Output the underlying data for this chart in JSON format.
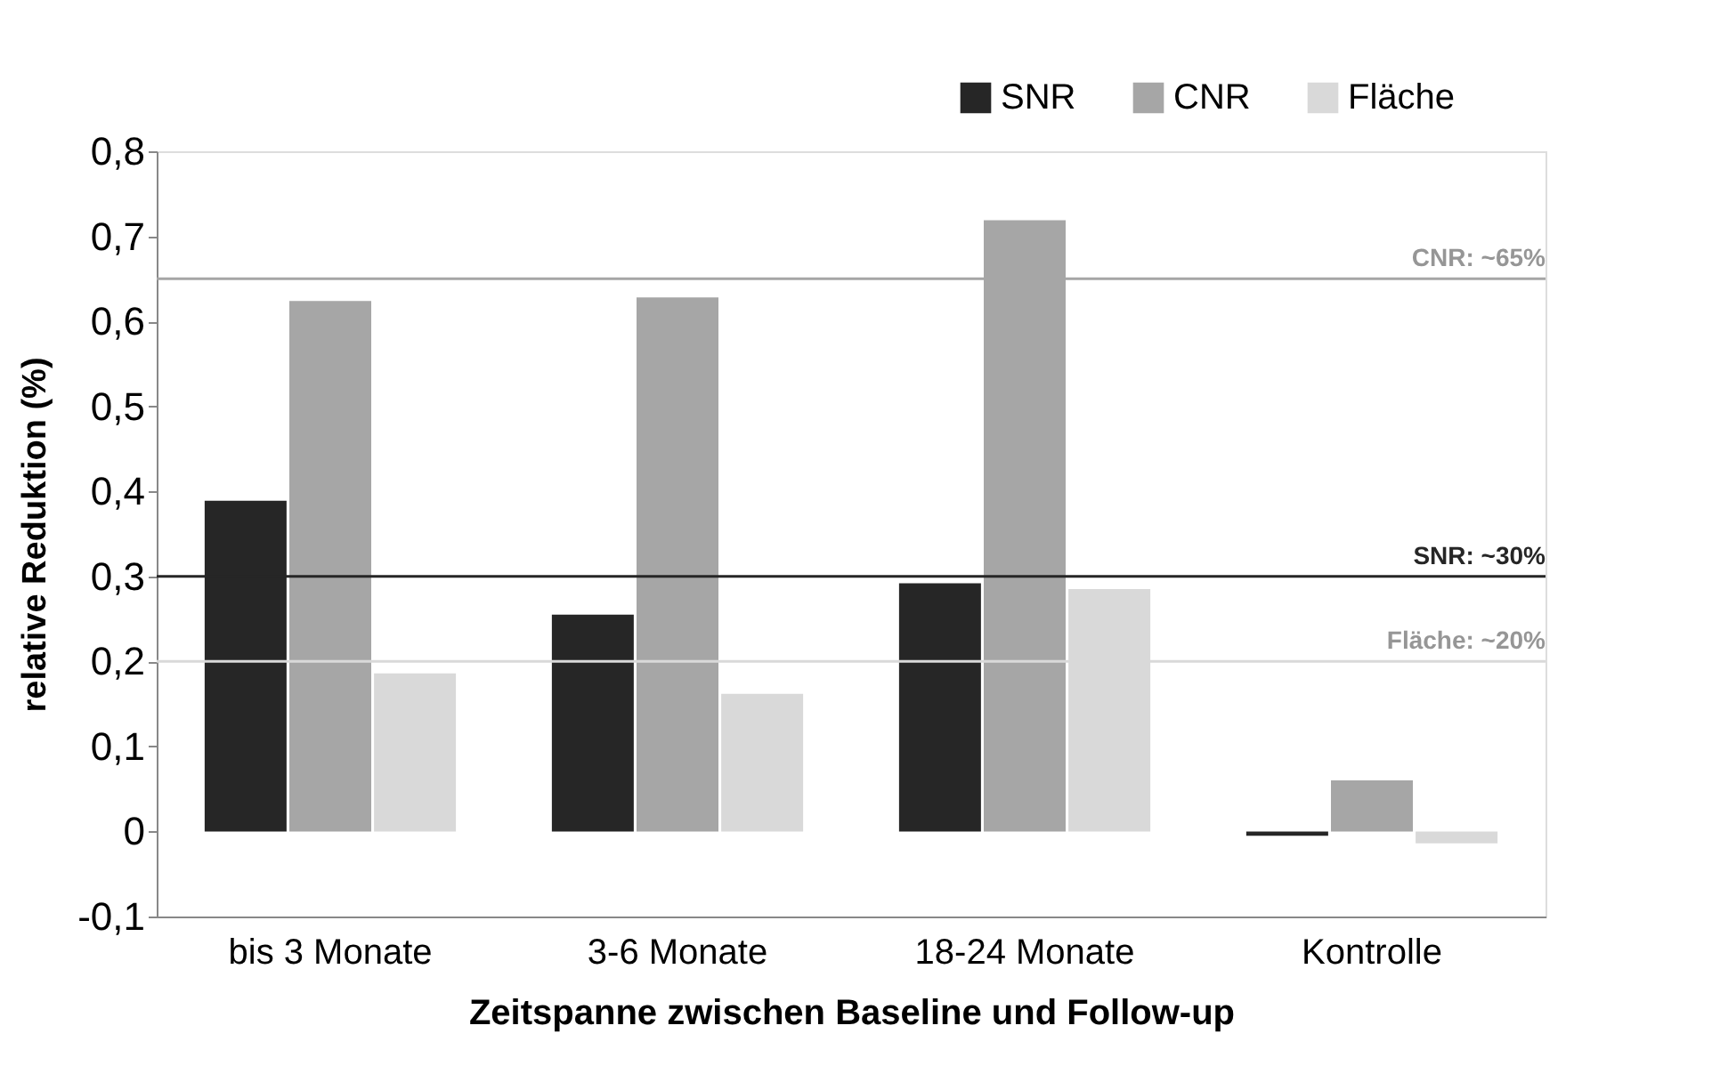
{
  "chart_data": {
    "type": "bar",
    "xlabel": "Zeitspanne zwischen Baseline und Follow-up",
    "ylabel": "relative Reduktion (%)",
    "categories": [
      "bis 3 Monate",
      "3-6 Monate",
      "18-24 Monate",
      "Kontrolle"
    ],
    "series": [
      {
        "name": "SNR",
        "color": "#262626",
        "values": [
          0.389,
          0.255,
          0.292,
          -0.005
        ]
      },
      {
        "name": "CNR",
        "color": "#a6a6a6",
        "values": [
          0.624,
          0.628,
          0.719,
          0.06
        ]
      },
      {
        "name": "Fläche",
        "color": "#d9d9d9",
        "values": [
          0.186,
          0.162,
          0.285,
          -0.014
        ]
      }
    ],
    "ylim": [
      -0.1,
      0.8
    ],
    "yticks": [
      {
        "value": -0.1,
        "label": "-0,1"
      },
      {
        "value": 0,
        "label": "0"
      },
      {
        "value": 0.1,
        "label": "0,1"
      },
      {
        "value": 0.2,
        "label": "0,2"
      },
      {
        "value": 0.3,
        "label": "0,3"
      },
      {
        "value": 0.4,
        "label": "0,4"
      },
      {
        "value": 0.5,
        "label": "0,5"
      },
      {
        "value": 0.6,
        "label": "0,6"
      },
      {
        "value": 0.7,
        "label": "0,7"
      },
      {
        "value": 0.8,
        "label": "0,8"
      }
    ],
    "ref_lines": [
      {
        "axis": "y",
        "value": 0.65,
        "label": "CNR: ~65%",
        "color": "#a6a6a6"
      },
      {
        "axis": "y",
        "value": 0.3,
        "label": "SNR: ~30%",
        "color": "#262626"
      },
      {
        "axis": "y",
        "value": 0.2,
        "label": "Fläche: ~20%",
        "color": "#d9d9d9"
      }
    ],
    "grid": false,
    "legend": "top right"
  }
}
